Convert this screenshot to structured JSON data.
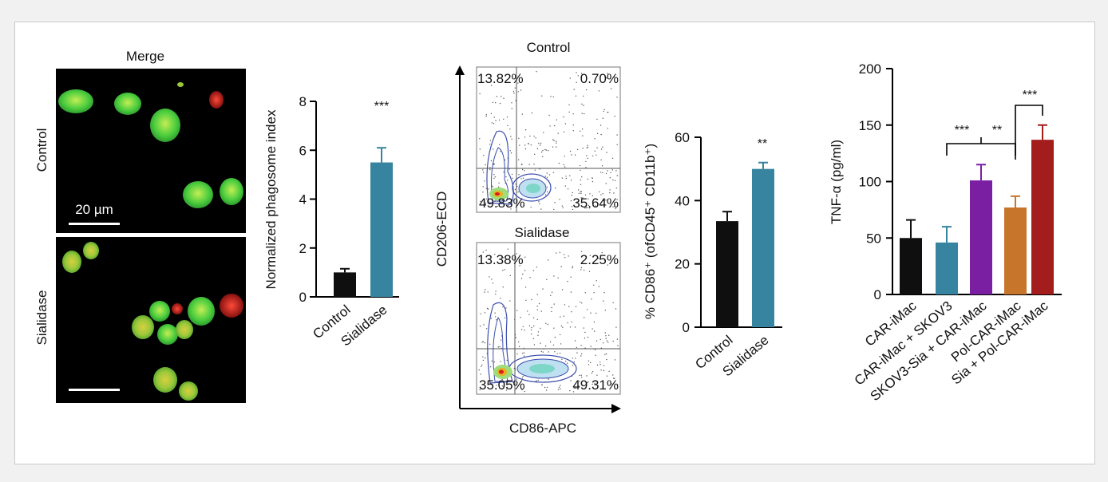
{
  "colors": {
    "black": "#0f0f0f",
    "teal": "#36849f",
    "purple": "#7a1fa2",
    "orange": "#c7752b",
    "darkred": "#a31d1d",
    "green": "#4cd24a",
    "red": "#d22020"
  },
  "microscopy": {
    "title": "Merge",
    "row_labels": [
      "Control",
      "Sialidase"
    ],
    "scale_bar_label": "20 µm"
  },
  "flow": {
    "panels": [
      {
        "label": "Control",
        "quadrants": [
          "13.82%",
          "0.70%",
          "49.83%",
          "35.64%"
        ]
      },
      {
        "label": "Sialidase",
        "quadrants": [
          "13.38%",
          "2.25%",
          "35.05%",
          "49.31%"
        ]
      }
    ],
    "xlabel": "CD86-APC",
    "ylabel": "CD206-ECD"
  },
  "chart_data": [
    {
      "type": "bar",
      "categories": [
        "Control",
        "Sialidase"
      ],
      "values": [
        1.0,
        5.5
      ],
      "errors": [
        0.15,
        0.6
      ],
      "ylabel": "Normalized phagosome index",
      "ylim": [
        0,
        8
      ],
      "yticks": [
        "0",
        "2",
        "4",
        "6",
        "8"
      ],
      "annotations": [
        "***"
      ],
      "colors": [
        "black",
        "teal"
      ]
    },
    {
      "type": "bar",
      "categories": [
        "Control",
        "Sialidase"
      ],
      "values": [
        33.5,
        50
      ],
      "errors": [
        3,
        2
      ],
      "ylabel": "% CD86⁺ (ofCD45⁺ CD11b⁺)",
      "ylim": [
        0,
        60
      ],
      "yticks": [
        "0",
        "20",
        "40",
        "60"
      ],
      "annotations": [
        "**"
      ],
      "colors": [
        "black",
        "teal"
      ]
    },
    {
      "type": "bar",
      "categories": [
        "CAR-iMac",
        "CAR-iMac + SKOV3",
        "SKOV3-Sia + CAR-iMac",
        "Pol-CAR-iMac",
        "Sia + Pol-CAR-iMac"
      ],
      "values": [
        50,
        46,
        101,
        77,
        137
      ],
      "errors": [
        16,
        14,
        14,
        10,
        13
      ],
      "ylabel": "TNF-α (pg/ml)",
      "ylim": [
        0,
        200
      ],
      "yticks": [
        "0",
        "50",
        "100",
        "150",
        "200"
      ],
      "annotations": [
        "***",
        "**",
        "***"
      ],
      "colors": [
        "black",
        "teal",
        "purple",
        "orange",
        "darkred"
      ]
    }
  ]
}
